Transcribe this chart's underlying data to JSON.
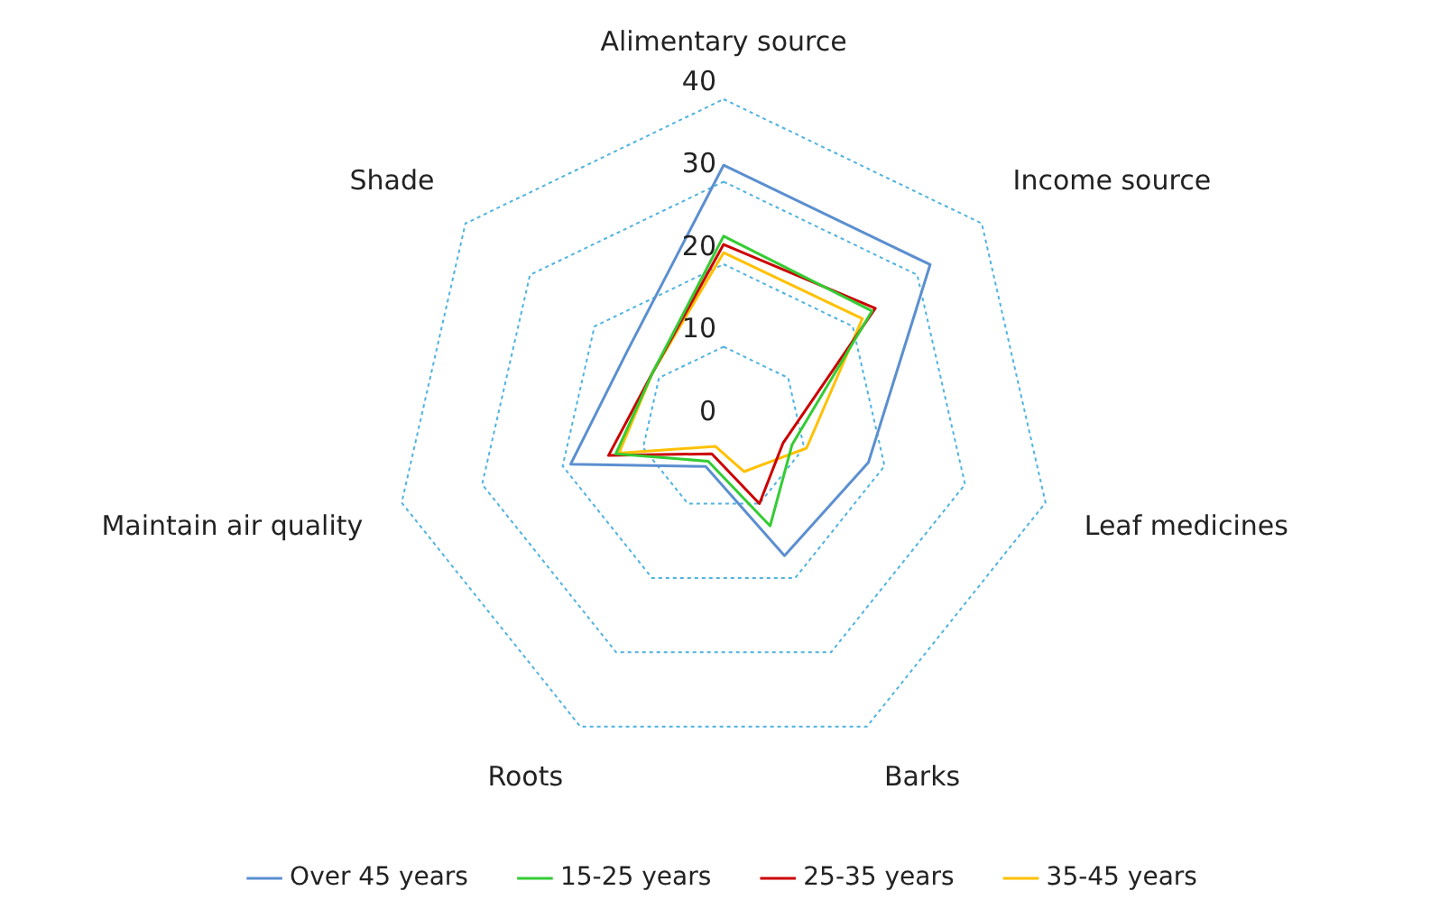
{
  "chart_data": {
    "type": "radar",
    "categories": [
      "Alimentary source",
      "Income source",
      "Leaf medicines",
      "Barks",
      "Roots",
      "Maintain air quality",
      "Shade"
    ],
    "ylim": [
      0,
      40
    ],
    "yticks": [
      0,
      10,
      20,
      30,
      40
    ],
    "grid": true,
    "legend": "bottom",
    "marker": "none",
    "line_style": "solid",
    "series": [
      {
        "name": "Over 45 years",
        "color": "#5b8fd0",
        "values": [
          32,
          32,
          18,
          17,
          5,
          19,
          15
        ]
      },
      {
        "name": "15-25 years",
        "color": "#33cc33",
        "values": [
          23.4,
          23,
          8.5,
          13,
          4.3,
          13.4,
          11
        ]
      },
      {
        "name": "25-35 years",
        "color": "#cc0000",
        "values": [
          22.4,
          23.5,
          7.4,
          10,
          3.3,
          14.3,
          11
        ]
      },
      {
        "name": "35-45 years",
        "color": "#ffc000",
        "values": [
          21.4,
          21.5,
          10.3,
          5.7,
          2.3,
          13,
          11
        ]
      }
    ]
  }
}
